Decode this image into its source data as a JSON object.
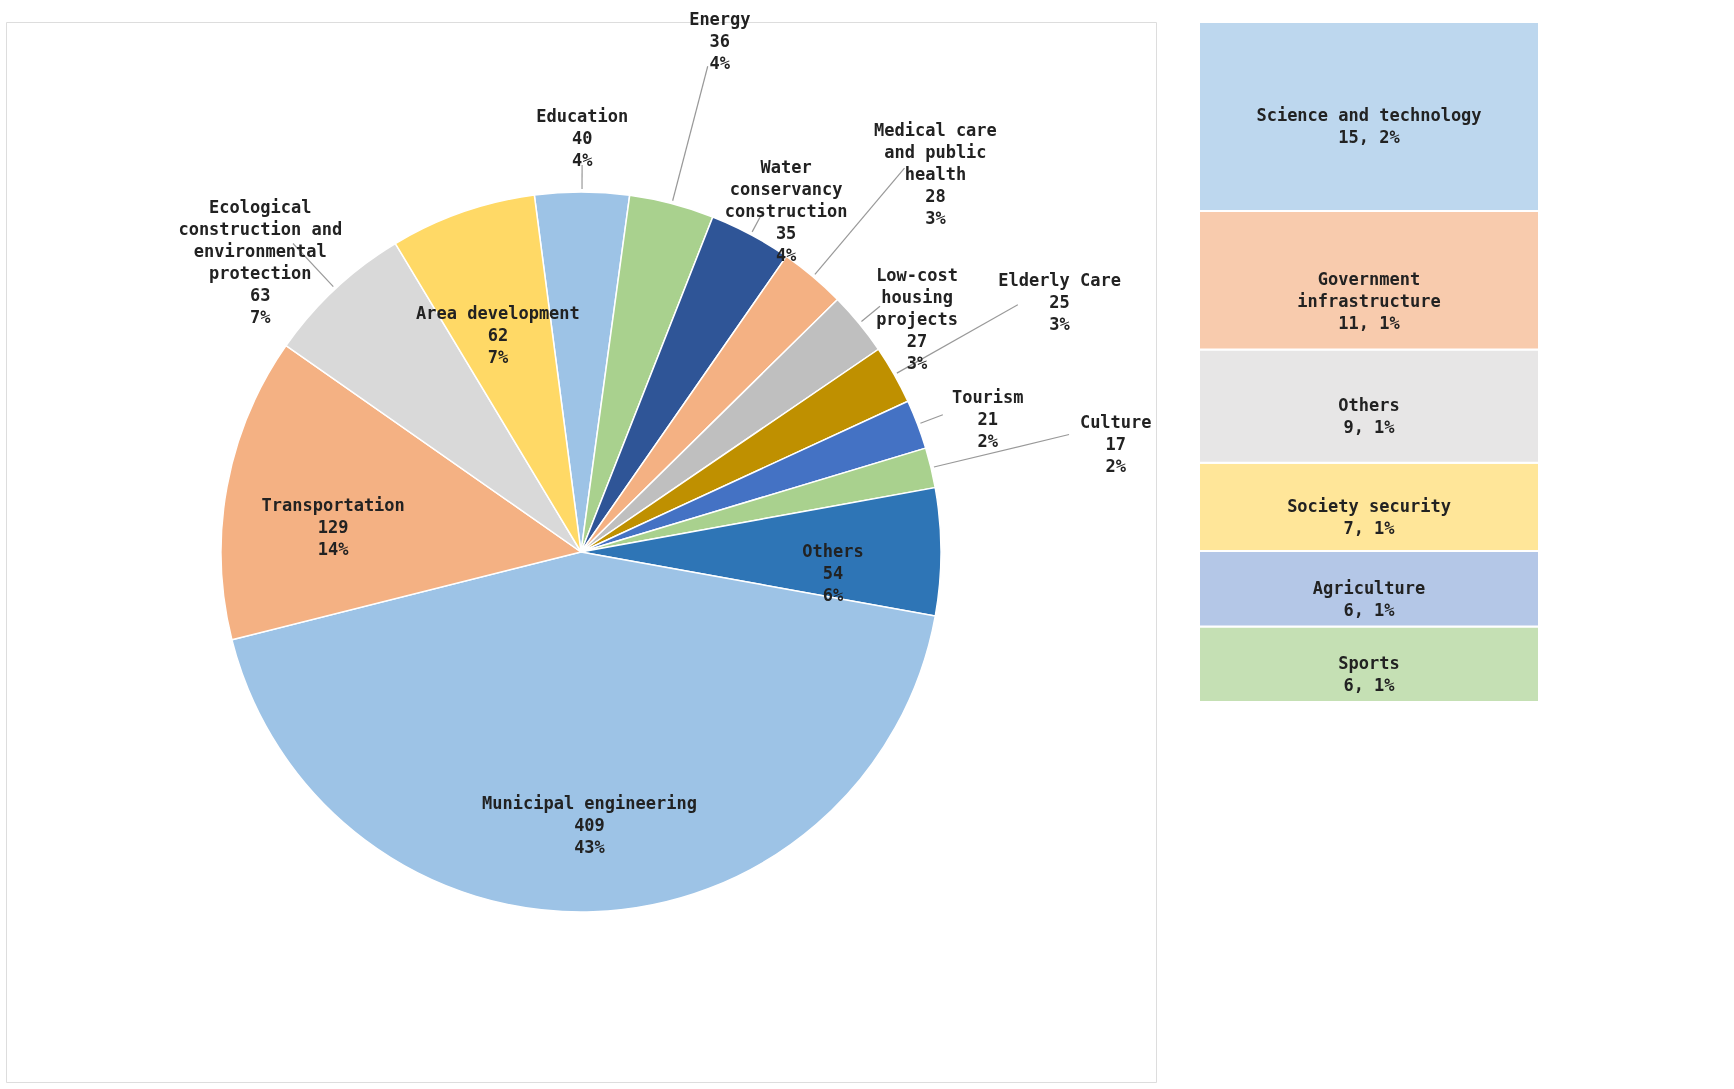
{
  "chart_data": [
    {
      "type": "pie",
      "categories": [
        "Education",
        "Energy",
        "Water conservancy construction",
        "Medical care and public health",
        "Low-cost housing projects",
        "Elderly Care",
        "Tourism",
        "Culture",
        "Others",
        "Municipal engineering",
        "Transportation",
        "Ecological construction and environmental protection",
        "Area development"
      ],
      "values": [
        40,
        36,
        35,
        28,
        27,
        25,
        21,
        17,
        54,
        409,
        129,
        63,
        62
      ],
      "value_labels": [
        "40\n4%",
        "36\n4%",
        "35\n4%",
        "28\n3%",
        "27\n3%",
        "25\n3%",
        "21\n2%",
        "17\n2%",
        "54\n6%",
        "409\n43%",
        "129\n14%",
        "63\n7%",
        "62\n7%"
      ],
      "colors": [
        "#9dc3e6",
        "#a9d18e",
        "#2f5597",
        "#f4b183",
        "#bfbfbf",
        "#bf9000",
        "#4472c4",
        "#a9d18e",
        "#2e75b6",
        "#9dc3e6",
        "#f4b183",
        "#d9d9d9",
        "#ffd966"
      ],
      "legend": false
    },
    {
      "type": "bar",
      "stacked": true,
      "categories": [
        null
      ],
      "legend": false,
      "series": [
        {
          "name": "Sports",
          "color": "#c5e0b4",
          "values": [
            6
          ],
          "value_labels": [
            "6, 1%"
          ]
        },
        {
          "name": "Agriculture",
          "color": "#b4c7e7",
          "values": [
            6
          ],
          "value_labels": [
            "6, 1%"
          ]
        },
        {
          "name": "Society security",
          "color": "#ffe699",
          "values": [
            7
          ],
          "value_labels": [
            "7, 1%"
          ]
        },
        {
          "name": "Others",
          "color": "#e7e6e6",
          "values": [
            9
          ],
          "value_labels": [
            "9, 1%"
          ]
        },
        {
          "name": "Government infrastructure",
          "color": "#f8cbad",
          "values": [
            11
          ],
          "value_labels": [
            "11, 1%"
          ]
        },
        {
          "name": "Science and technology",
          "color": "#bdd7ee",
          "values": [
            15
          ],
          "value_labels": [
            "15, 2%"
          ]
        }
      ]
    }
  ]
}
